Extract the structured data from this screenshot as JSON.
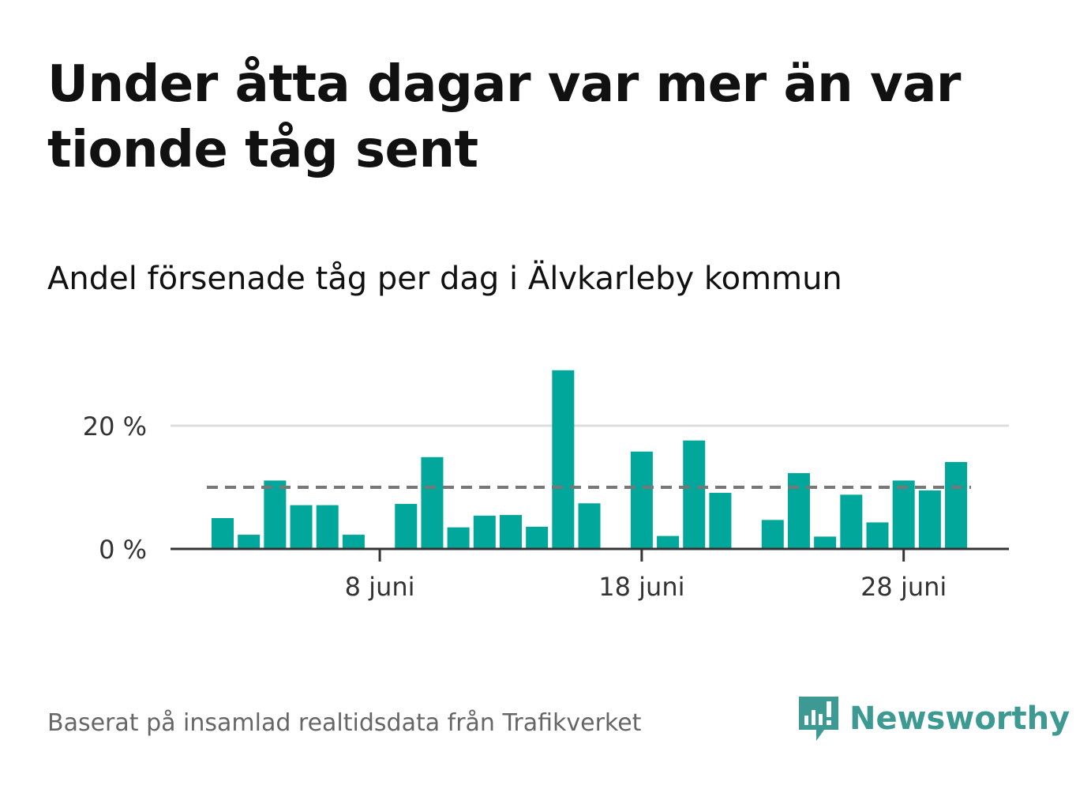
{
  "title": "Under åtta dagar var mer än var tionde tåg sent",
  "subtitle": "Andel försenade tåg per dag i Älvkarleby kommun",
  "source": "Baserat på insamlad realtidsdata från Trafikverket",
  "brand": {
    "name": "Newsworthy",
    "icon": "newsworthy-logo-icon",
    "color": "#3d9a92"
  },
  "colors": {
    "bar": "#00a79a",
    "reference": "#777777",
    "grid": "#dddddd",
    "axis": "#333333"
  },
  "chart_data": {
    "type": "bar",
    "x": [
      "2 juni",
      "3 juni",
      "4 juni",
      "5 juni",
      "6 juni",
      "7 juni",
      "8 juni",
      "9 juni",
      "10 juni",
      "11 juni",
      "12 juni",
      "13 juni",
      "14 juni",
      "15 juni",
      "16 juni",
      "17 juni",
      "18 juni",
      "19 juni",
      "20 juni",
      "21 juni",
      "22 juni",
      "23 juni",
      "24 juni",
      "25 juni",
      "26 juni",
      "27 juni",
      "28 juni",
      "29 juni",
      "30 juni"
    ],
    "values": [
      5.0,
      2.3,
      11.1,
      7.1,
      7.1,
      2.3,
      0,
      7.3,
      14.9,
      3.5,
      5.4,
      5.5,
      3.6,
      29.0,
      7.4,
      0,
      15.8,
      2.1,
      17.6,
      9.1,
      0,
      4.7,
      12.3,
      2.0,
      8.8,
      4.3,
      11.1,
      9.5,
      14.1
    ],
    "reference_line": 10,
    "xticks": [
      "8 juni",
      "18 juni",
      "28 juni"
    ],
    "yticks": [
      "0 %",
      "20 %"
    ],
    "ytick_values": [
      0,
      20
    ],
    "ylim": [
      0,
      30
    ],
    "xlabel": "",
    "ylabel": "",
    "grid": true,
    "legend": "none"
  }
}
